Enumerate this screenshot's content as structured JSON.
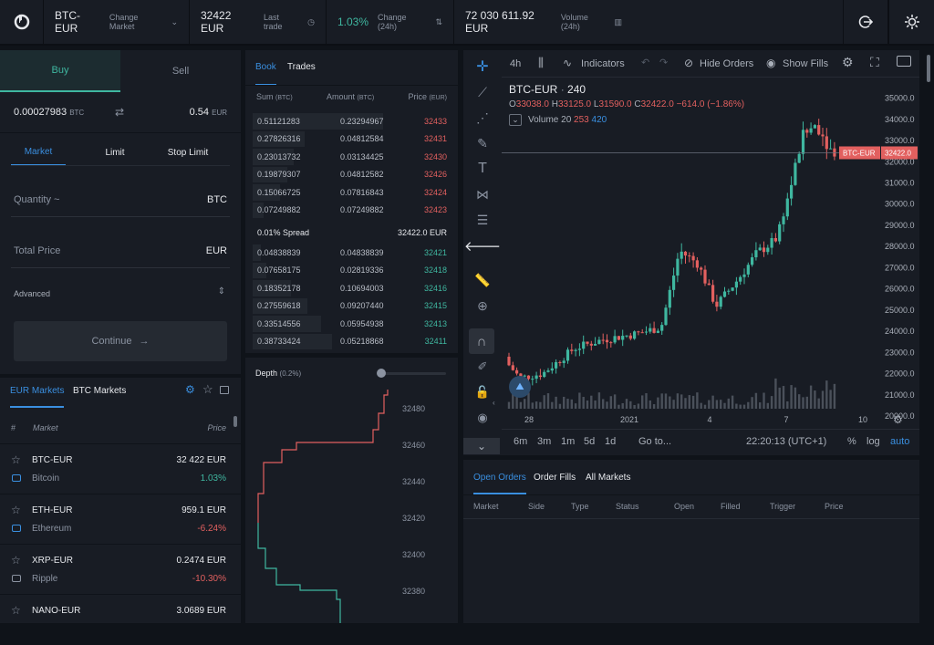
{
  "top": {
    "pair": "BTC-EUR",
    "change_market": "Change Market",
    "last_price": "32422 EUR",
    "last_trade_label": "Last trade",
    "change": "1.03%",
    "change_label": "Change (24h)",
    "volume": "72 030 611.92 EUR",
    "volume_label": "Volume (24h)"
  },
  "trade": {
    "buy": "Buy",
    "sell": "Sell",
    "amount_btc": "0.00027983",
    "btc_unit": "BTC",
    "amount_eur": "0.54",
    "eur_unit": "EUR",
    "tabs": [
      "Market",
      "Limit",
      "Stop Limit"
    ],
    "quantity_label": "Quantity ~",
    "quantity_unit": "BTC",
    "total_label": "Total Price",
    "total_unit": "EUR",
    "advanced": "Advanced",
    "continue": "Continue"
  },
  "markets": {
    "tab_eur": "EUR Markets",
    "tab_btc": "BTC Markets",
    "col_num": "#",
    "col_market": "Market",
    "col_price": "Price",
    "items": [
      {
        "symbol": "BTC-EUR",
        "name": "Bitcoin",
        "price": "32 422 EUR",
        "change": "1.03%",
        "dir": "up"
      },
      {
        "symbol": "ETH-EUR",
        "name": "Ethereum",
        "price": "959.1 EUR",
        "change": "-6.24%",
        "dir": "down"
      },
      {
        "symbol": "XRP-EUR",
        "name": "Ripple",
        "price": "0.2474 EUR",
        "change": "-10.30%",
        "dir": "down"
      },
      {
        "symbol": "NANO-EUR",
        "name": "",
        "price": "3.0689 EUR",
        "change": "",
        "dir": ""
      }
    ]
  },
  "book": {
    "tab_book": "Book",
    "tab_trades": "Trades",
    "col_sum": "Sum",
    "col_sum_unit": "(BTC)",
    "col_amount": "Amount",
    "col_amount_unit": "(BTC)",
    "col_price": "Price",
    "col_price_unit": "(EUR)",
    "asks": [
      {
        "sum": "0.51121283",
        "amount": "0.23294967",
        "price": "32433",
        "depth": 0.95
      },
      {
        "sum": "0.27826316",
        "amount": "0.04812584",
        "price": "32431",
        "depth": 0.38
      },
      {
        "sum": "0.23013732",
        "amount": "0.03134425",
        "price": "32430",
        "depth": 0.3
      },
      {
        "sum": "0.19879307",
        "amount": "0.04812582",
        "price": "32426",
        "depth": 0.25
      },
      {
        "sum": "0.15066725",
        "amount": "0.07816843",
        "price": "32424",
        "depth": 0.2
      },
      {
        "sum": "0.07249882",
        "amount": "0.07249882",
        "price": "32423",
        "depth": 0.08
      }
    ],
    "spread_label": "0.01% Spread",
    "spread_price": "32422.0 EUR",
    "bids": [
      {
        "sum": "0.04838839",
        "amount": "0.04838839",
        "price": "32421",
        "depth": 0.06
      },
      {
        "sum": "0.07658175",
        "amount": "0.02819336",
        "price": "32418",
        "depth": 0.1
      },
      {
        "sum": "0.18352178",
        "amount": "0.10694003",
        "price": "32416",
        "depth": 0.28
      },
      {
        "sum": "0.27559618",
        "amount": "0.09207440",
        "price": "32415",
        "depth": 0.4
      },
      {
        "sum": "0.33514556",
        "amount": "0.05954938",
        "price": "32413",
        "depth": 0.5
      },
      {
        "sum": "0.38733424",
        "amount": "0.05218868",
        "price": "32411",
        "depth": 0.58
      }
    ]
  },
  "depth": {
    "title": "Depth",
    "pct": "(0.2%)",
    "ticks": [
      "32480",
      "32460",
      "32440",
      "32420",
      "32400",
      "32380"
    ]
  },
  "chart": {
    "interval": "4h",
    "indicators": "Indicators",
    "hide_orders": "Hide Orders",
    "show_fills": "Show Fills",
    "symbol": "BTC-EUR",
    "sep": "·",
    "period": "240",
    "o_label": "O",
    "open": "33038.0",
    "h_label": "H",
    "high": "33125.0",
    "l_label": "L",
    "low": "31590.0",
    "c_label": "C",
    "close": "32422.0",
    "change": "−614.0 (−1.86%)",
    "volume_label": "Volume 20",
    "vol1": "253",
    "vol2": "420",
    "tag_symbol": "BTC-EUR",
    "tag_price": "32422.0",
    "y_ticks": [
      "35000.0",
      "34000.0",
      "33000.0",
      "32000.0",
      "31000.0",
      "30000.0",
      "29000.0",
      "28000.0",
      "27000.0",
      "26000.0",
      "25000.0",
      "24000.0",
      "23000.0",
      "22000.0",
      "21000.0",
      "20000.0"
    ],
    "x_ticks": [
      "28",
      "2021",
      "4",
      "7",
      "10"
    ],
    "ranges": [
      "6m",
      "3m",
      "1m",
      "5d",
      "1d"
    ],
    "goto": "Go to...",
    "time": "22:20:13 (UTC+1)",
    "pct": "%",
    "log": "log",
    "auto": "auto"
  },
  "chart_data": {
    "type": "candlestick",
    "ylim": [
      20000,
      35500
    ],
    "x_ticks": [
      "28",
      "2021",
      "4",
      "7",
      "10"
    ],
    "last_price": 32422.0,
    "up_color": "#3fb7a0",
    "down_color": "#e2605f"
  },
  "orders": {
    "tabs": [
      "Open Orders",
      "Order Fills",
      "All Markets"
    ],
    "cols": [
      "Market",
      "Side",
      "Type",
      "Status",
      "Open",
      "Filled",
      "Trigger",
      "Price"
    ]
  }
}
